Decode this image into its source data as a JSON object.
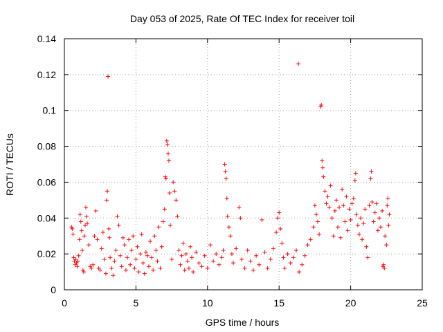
{
  "chart_data": {
    "type": "scatter",
    "title": "Day 053 of 2025, Rate Of TEC Index for receiver toil",
    "xlabel": "GPS time / hours",
    "ylabel": "ROTI / TECUs",
    "xlim": [
      0,
      25
    ],
    "ylim": [
      0,
      0.14
    ],
    "xticks": [
      0,
      5,
      10,
      15,
      20,
      25
    ],
    "yticks": [
      0,
      0.02,
      0.04,
      0.06,
      0.08,
      0.1,
      0.12,
      0.14
    ],
    "xtick_labels": [
      "0",
      "5",
      "10",
      "15",
      "20",
      "25"
    ],
    "ytick_labels": [
      "0",
      "0.02",
      "0.04",
      "0.06",
      "0.08",
      "0.1",
      "0.12",
      "0.14"
    ],
    "grid": true,
    "marker": "plus",
    "color": "#ff0000",
    "series": [
      {
        "name": "ROTI",
        "points": [
          [
            0.5,
            0.035
          ],
          [
            0.55,
            0.034
          ],
          [
            0.6,
            0.031
          ],
          [
            0.65,
            0.018
          ],
          [
            0.7,
            0.016
          ],
          [
            0.75,
            0.014
          ],
          [
            0.8,
            0.017
          ],
          [
            0.85,
            0.015
          ],
          [
            0.9,
            0.013
          ],
          [
            0.95,
            0.016
          ],
          [
            1.0,
            0.019
          ],
          [
            1.05,
            0.028
          ],
          [
            1.1,
            0.042
          ],
          [
            1.15,
            0.038
          ],
          [
            1.2,
            0.033
          ],
          [
            1.25,
            0.022
          ],
          [
            1.3,
            0.011
          ],
          [
            1.35,
            0.01
          ],
          [
            1.4,
            0.03
          ],
          [
            1.45,
            0.036
          ],
          [
            1.5,
            0.046
          ],
          [
            1.55,
            0.041
          ],
          [
            1.6,
            0.037
          ],
          [
            1.7,
            0.025
          ],
          [
            1.8,
            0.013
          ],
          [
            1.9,
            0.012
          ],
          [
            2.0,
            0.014
          ],
          [
            2.1,
            0.03
          ],
          [
            2.2,
            0.044
          ],
          [
            2.3,
            0.028
          ],
          [
            2.4,
            0.012
          ],
          [
            2.5,
            0.011
          ],
          [
            2.6,
            0.023
          ],
          [
            2.7,
            0.032
          ],
          [
            2.8,
            0.017
          ],
          [
            2.9,
            0.009
          ],
          [
            2.95,
            0.05
          ],
          [
            3.0,
            0.055
          ],
          [
            3.05,
            0.119
          ],
          [
            3.1,
            0.034
          ],
          [
            3.15,
            0.029
          ],
          [
            3.2,
            0.018
          ],
          [
            3.3,
            0.012
          ],
          [
            3.4,
            0.008
          ],
          [
            3.5,
            0.016
          ],
          [
            3.6,
            0.022
          ],
          [
            3.7,
            0.041
          ],
          [
            3.8,
            0.036
          ],
          [
            3.9,
            0.019
          ],
          [
            4.0,
            0.013
          ],
          [
            4.1,
            0.029
          ],
          [
            4.2,
            0.025
          ],
          [
            4.3,
            0.011
          ],
          [
            4.4,
            0.018
          ],
          [
            4.5,
            0.028
          ],
          [
            4.6,
            0.014
          ],
          [
            4.7,
            0.022
          ],
          [
            4.8,
            0.03
          ],
          [
            4.9,
            0.012
          ],
          [
            5.0,
            0.017
          ],
          [
            5.1,
            0.024
          ],
          [
            5.2,
            0.01
          ],
          [
            5.3,
            0.02
          ],
          [
            5.4,
            0.031
          ],
          [
            5.5,
            0.015
          ],
          [
            5.6,
            0.009
          ],
          [
            5.7,
            0.021
          ],
          [
            5.8,
            0.019
          ],
          [
            5.9,
            0.013
          ],
          [
            6.0,
            0.027
          ],
          [
            6.1,
            0.018
          ],
          [
            6.2,
            0.011
          ],
          [
            6.3,
            0.03
          ],
          [
            6.4,
            0.022
          ],
          [
            6.5,
            0.016
          ],
          [
            6.6,
            0.035
          ],
          [
            6.7,
            0.012
          ],
          [
            6.8,
            0.024
          ],
          [
            6.9,
            0.038
          ],
          [
            7.0,
            0.045
          ],
          [
            7.05,
            0.063
          ],
          [
            7.1,
            0.062
          ],
          [
            7.15,
            0.083
          ],
          [
            7.2,
            0.081
          ],
          [
            7.25,
            0.076
          ],
          [
            7.3,
            0.072
          ],
          [
            7.35,
            0.054
          ],
          [
            7.4,
            0.036
          ],
          [
            7.5,
            0.017
          ],
          [
            7.6,
            0.06
          ],
          [
            7.7,
            0.055
          ],
          [
            7.8,
            0.05
          ],
          [
            7.9,
            0.041
          ],
          [
            8.0,
            0.022
          ],
          [
            8.1,
            0.014
          ],
          [
            8.2,
            0.019
          ],
          [
            8.3,
            0.026
          ],
          [
            8.4,
            0.011
          ],
          [
            8.5,
            0.02
          ],
          [
            8.6,
            0.016
          ],
          [
            8.7,
            0.012
          ],
          [
            8.8,
            0.024
          ],
          [
            8.9,
            0.018
          ],
          [
            9.0,
            0.01
          ],
          [
            9.2,
            0.021
          ],
          [
            9.4,
            0.015
          ],
          [
            9.6,
            0.013
          ],
          [
            9.8,
            0.019
          ],
          [
            10.0,
            0.012
          ],
          [
            10.2,
            0.025
          ],
          [
            10.4,
            0.016
          ],
          [
            10.6,
            0.02
          ],
          [
            10.8,
            0.014
          ],
          [
            11.0,
            0.018
          ],
          [
            11.1,
            0.022
          ],
          [
            11.2,
            0.07
          ],
          [
            11.25,
            0.066
          ],
          [
            11.3,
            0.062
          ],
          [
            11.35,
            0.051
          ],
          [
            11.4,
            0.041
          ],
          [
            11.5,
            0.035
          ],
          [
            11.6,
            0.03
          ],
          [
            11.7,
            0.02
          ],
          [
            11.8,
            0.015
          ],
          [
            12.0,
            0.023
          ],
          [
            12.2,
            0.046
          ],
          [
            12.3,
            0.04
          ],
          [
            12.4,
            0.017
          ],
          [
            12.6,
            0.012
          ],
          [
            12.8,
            0.022
          ],
          [
            13.0,
            0.016
          ],
          [
            13.2,
            0.011
          ],
          [
            13.4,
            0.019
          ],
          [
            13.6,
            0.014
          ],
          [
            13.8,
            0.039
          ],
          [
            14.0,
            0.021
          ],
          [
            14.2,
            0.012
          ],
          [
            14.4,
            0.017
          ],
          [
            14.6,
            0.023
          ],
          [
            14.8,
            0.032
          ],
          [
            14.9,
            0.04
          ],
          [
            15.0,
            0.043
          ],
          [
            15.1,
            0.034
          ],
          [
            15.2,
            0.026
          ],
          [
            15.3,
            0.018
          ],
          [
            15.4,
            0.012
          ],
          [
            15.6,
            0.02
          ],
          [
            15.8,
            0.015
          ],
          [
            16.0,
            0.018
          ],
          [
            16.2,
            0.022
          ],
          [
            16.35,
            0.126
          ],
          [
            16.4,
            0.01
          ],
          [
            16.6,
            0.014
          ],
          [
            16.8,
            0.019
          ],
          [
            17.0,
            0.025
          ],
          [
            17.2,
            0.028
          ],
          [
            17.4,
            0.035
          ],
          [
            17.5,
            0.047
          ],
          [
            17.6,
            0.042
          ],
          [
            17.7,
            0.038
          ],
          [
            17.8,
            0.031
          ],
          [
            17.9,
            0.102
          ],
          [
            17.95,
            0.103
          ],
          [
            18.0,
            0.072
          ],
          [
            18.05,
            0.068
          ],
          [
            18.1,
            0.063
          ],
          [
            18.2,
            0.055
          ],
          [
            18.3,
            0.048
          ],
          [
            18.4,
            0.052
          ],
          [
            18.5,
            0.046
          ],
          [
            18.6,
            0.058
          ],
          [
            18.7,
            0.04
          ],
          [
            18.8,
            0.03
          ],
          [
            18.9,
            0.044
          ],
          [
            19.0,
            0.05
          ],
          [
            19.1,
            0.035
          ],
          [
            19.2,
            0.046
          ],
          [
            19.3,
            0.029
          ],
          [
            19.4,
            0.056
          ],
          [
            19.5,
            0.047
          ],
          [
            19.6,
            0.038
          ],
          [
            19.7,
            0.052
          ],
          [
            19.8,
            0.033
          ],
          [
            19.9,
            0.045
          ],
          [
            20.0,
            0.039
          ],
          [
            20.1,
            0.048
          ],
          [
            20.2,
            0.051
          ],
          [
            20.3,
            0.061
          ],
          [
            20.35,
            0.065
          ],
          [
            20.4,
            0.042
          ],
          [
            20.5,
            0.036
          ],
          [
            20.6,
            0.031
          ],
          [
            20.7,
            0.04
          ],
          [
            20.8,
            0.028
          ],
          [
            20.9,
            0.037
          ],
          [
            21.0,
            0.045
          ],
          [
            21.1,
            0.024
          ],
          [
            21.2,
            0.018
          ],
          [
            21.3,
            0.047
          ],
          [
            21.4,
            0.062
          ],
          [
            21.45,
            0.066
          ],
          [
            21.5,
            0.049
          ],
          [
            21.6,
            0.038
          ],
          [
            21.7,
            0.043
          ],
          [
            21.8,
            0.048
          ],
          [
            21.9,
            0.033
          ],
          [
            22.0,
            0.04
          ],
          [
            22.1,
            0.035
          ],
          [
            22.2,
            0.044
          ],
          [
            22.25,
            0.013
          ],
          [
            22.3,
            0.014
          ],
          [
            22.35,
            0.012
          ],
          [
            22.4,
            0.03
          ],
          [
            22.5,
            0.025
          ],
          [
            22.55,
            0.047
          ],
          [
            22.6,
            0.051
          ],
          [
            22.65,
            0.036
          ],
          [
            22.7,
            0.042
          ]
        ]
      }
    ]
  }
}
